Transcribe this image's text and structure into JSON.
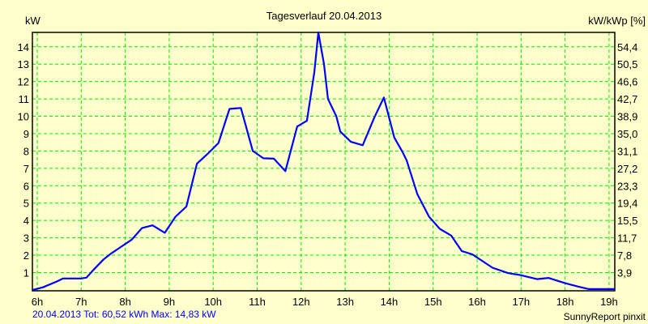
{
  "chart_data": {
    "type": "line",
    "title": "Tagesverlauf 20.04.2013",
    "ylabel": "kW",
    "ylabel_right": "kW/kWp [%]",
    "xlabel": "",
    "xlim": [
      5.89,
      19.13
    ],
    "ylim": [
      -0.05,
      14.83
    ],
    "grid": true,
    "x_ticks": [
      6,
      7,
      8,
      9,
      10,
      11,
      12,
      13,
      14,
      15,
      16,
      17,
      18,
      19
    ],
    "x_tick_labels": [
      "6h",
      "7h",
      "8h",
      "9h",
      "10h",
      "11h",
      "12h",
      "13h",
      "14h",
      "15h",
      "16h",
      "17h",
      "18h",
      "19h"
    ],
    "y_ticks": [
      1,
      2,
      3,
      4,
      5,
      6,
      7,
      8,
      9,
      10,
      11,
      12,
      13,
      14
    ],
    "y_tick_labels": [
      "1",
      "2",
      "3",
      "4",
      "5",
      "6",
      "7",
      "8",
      "9",
      "10",
      "11",
      "12",
      "13",
      "14"
    ],
    "y_right_tick_labels": [
      "3,9",
      "7,8",
      "11,7",
      "15,5",
      "19,4",
      "23,3",
      "27,2",
      "31,1",
      "35,0",
      "38,9",
      "42,7",
      "46,6",
      "50,5",
      "54,4"
    ],
    "series": [
      {
        "name": "kW",
        "color": "#0000FF",
        "x": [
          5.9,
          6.13,
          6.44,
          6.59,
          7.0,
          7.12,
          7.27,
          7.51,
          7.67,
          7.88,
          8.15,
          8.38,
          8.62,
          8.9,
          9.14,
          9.39,
          9.63,
          9.88,
          10.12,
          10.37,
          10.49,
          10.63,
          10.9,
          11.14,
          11.38,
          11.64,
          11.91,
          12.13,
          12.3,
          12.39,
          12.52,
          12.61,
          12.8,
          12.89,
          13.13,
          13.4,
          13.66,
          13.88,
          14.12,
          14.31,
          14.4,
          14.64,
          14.91,
          15.15,
          15.41,
          15.65,
          15.89,
          16.35,
          16.7,
          16.99,
          17.36,
          17.62,
          18.0,
          18.28,
          18.54,
          19.13
        ],
        "y": [
          0,
          0.15,
          0.48,
          0.66,
          0.66,
          0.71,
          1.13,
          1.76,
          2.08,
          2.44,
          2.9,
          3.56,
          3.72,
          3.29,
          4.21,
          4.8,
          7.27,
          7.85,
          8.46,
          10.42,
          10.45,
          10.48,
          8.0,
          7.58,
          7.56,
          6.84,
          9.41,
          9.74,
          12.55,
          14.83,
          13.0,
          11.0,
          10.0,
          9.12,
          8.53,
          8.33,
          9.92,
          11.08,
          8.76,
          7.92,
          7.45,
          5.52,
          4.21,
          3.52,
          3.13,
          2.24,
          2.05,
          1.28,
          0.97,
          0.85,
          0.62,
          0.69,
          0.39,
          0.2,
          0.05,
          0.05
        ]
      }
    ]
  },
  "footer": {
    "left": "20.04.2013 Tot: 60,52 kWh Max: 14,83 kW",
    "right": "SunnyReport pinxit",
    "left_color": "#0000FF"
  }
}
